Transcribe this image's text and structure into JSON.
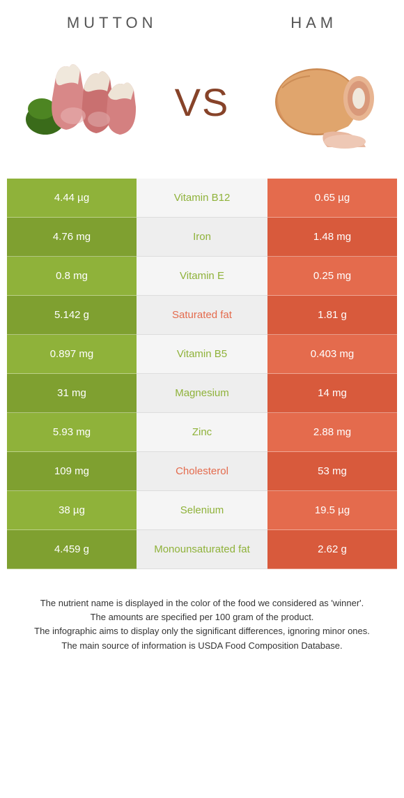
{
  "colors": {
    "mutton": "#8fb23a",
    "ham": "#e46b4d",
    "mutton_dark": "#7fa030",
    "ham_dark": "#d85a3c",
    "nutrient_mutton_text": "#8fb23a",
    "nutrient_ham_text": "#e46b4d"
  },
  "titles": {
    "left": "MUTTON",
    "right": "HAM",
    "vs": "VS"
  },
  "rows": [
    {
      "nutrient": "Vitamin B12",
      "left": "4.44 µg",
      "right": "0.65 µg",
      "winner": "left"
    },
    {
      "nutrient": "Iron",
      "left": "4.76 mg",
      "right": "1.48 mg",
      "winner": "left"
    },
    {
      "nutrient": "Vitamin E",
      "left": "0.8 mg",
      "right": "0.25 mg",
      "winner": "left"
    },
    {
      "nutrient": "Saturated fat",
      "left": "5.142 g",
      "right": "1.81 g",
      "winner": "right"
    },
    {
      "nutrient": "Vitamin B5",
      "left": "0.897 mg",
      "right": "0.403 mg",
      "winner": "left"
    },
    {
      "nutrient": "Magnesium",
      "left": "31 mg",
      "right": "14 mg",
      "winner": "left"
    },
    {
      "nutrient": "Zinc",
      "left": "5.93 mg",
      "right": "2.88 mg",
      "winner": "left"
    },
    {
      "nutrient": "Cholesterol",
      "left": "109 mg",
      "right": "53 mg",
      "winner": "right"
    },
    {
      "nutrient": "Selenium",
      "left": "38 µg",
      "right": "19.5 µg",
      "winner": "left"
    },
    {
      "nutrient": "Monounsaturated fat",
      "left": "4.459 g",
      "right": "2.62 g",
      "winner": "left"
    }
  ],
  "footer": [
    "The nutrient name is displayed in the color of the food we considered as 'winner'.",
    "The amounts are specified per 100 gram of the product.",
    "The infographic aims to display only the significant differences, ignoring minor ones.",
    "The main source of information is USDA Food Composition Database."
  ]
}
